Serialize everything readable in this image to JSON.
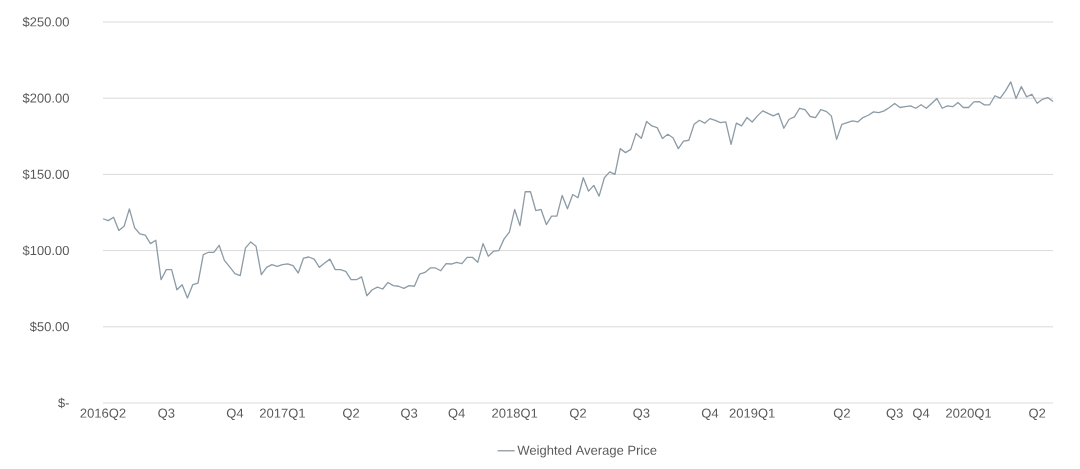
{
  "chart_data": {
    "type": "line",
    "ylim": [
      0,
      250
    ],
    "yticks": [
      {
        "value": 0,
        "label": "$-"
      },
      {
        "value": 50,
        "label": "$50.00"
      },
      {
        "value": 100,
        "label": "$100.00"
      },
      {
        "value": 150,
        "label": "$150.00"
      },
      {
        "value": 200,
        "label": "$200.00"
      },
      {
        "value": 250,
        "label": "$250.00"
      }
    ],
    "grid": "y",
    "legend": "bottom",
    "marker": "none",
    "line_style": "solid",
    "categories": [
      "2016Q2",
      null,
      null,
      null,
      null,
      null,
      null,
      null,
      null,
      null,
      null,
      null,
      "Q3",
      null,
      null,
      null,
      null,
      null,
      null,
      null,
      null,
      null,
      null,
      null,
      null,
      "Q4",
      null,
      null,
      null,
      null,
      null,
      null,
      null,
      null,
      "2017Q1",
      null,
      null,
      null,
      null,
      null,
      null,
      null,
      null,
      null,
      null,
      null,
      null,
      "Q2",
      null,
      null,
      null,
      null,
      null,
      null,
      null,
      null,
      null,
      null,
      "Q3",
      null,
      null,
      null,
      null,
      null,
      null,
      null,
      null,
      "Q4",
      null,
      null,
      null,
      null,
      null,
      null,
      null,
      null,
      null,
      null,
      "2018Q1",
      null,
      null,
      null,
      null,
      null,
      null,
      null,
      null,
      null,
      null,
      null,
      "Q2",
      null,
      null,
      null,
      null,
      null,
      null,
      null,
      null,
      null,
      null,
      null,
      "Q3",
      null,
      null,
      null,
      null,
      null,
      null,
      null,
      null,
      null,
      null,
      null,
      null,
      "Q4",
      null,
      null,
      null,
      null,
      null,
      null,
      null,
      "2019Q1",
      null,
      null,
      null,
      null,
      null,
      null,
      null,
      null,
      null,
      null,
      null,
      null,
      null,
      null,
      null,
      null,
      "Q2",
      null,
      null,
      null,
      null,
      null,
      null,
      null,
      null,
      null,
      "Q3",
      null,
      null,
      null,
      null,
      "Q4",
      null,
      null,
      null,
      null,
      null,
      null,
      null,
      null,
      "2020Q1",
      null,
      null,
      null,
      null,
      null,
      null,
      null,
      null,
      null,
      null,
      null,
      null,
      "Q2",
      null,
      null,
      null
    ],
    "series": [
      {
        "name": "Weighted Average Price",
        "color": "#8c9ba5",
        "values": [
          120.9,
          119.7,
          121.9,
          113.2,
          116.0,
          127.4,
          114.9,
          110.9,
          110.1,
          104.6,
          106.8,
          80.9,
          87.5,
          87.5,
          74.3,
          77.6,
          68.9,
          77.6,
          78.7,
          97.4,
          98.9,
          98.9,
          103.5,
          93.6,
          89.3,
          84.9,
          83.6,
          101.8,
          105.7,
          102.8,
          84.2,
          89.0,
          90.8,
          89.7,
          90.8,
          91.3,
          90.1,
          85.3,
          95.1,
          95.8,
          94.4,
          89.0,
          91.9,
          94.4,
          87.5,
          87.5,
          86.4,
          80.9,
          80.9,
          82.8,
          70.4,
          74.3,
          76.0,
          74.8,
          79.1,
          77.0,
          76.6,
          75.2,
          77.0,
          76.6,
          84.6,
          85.7,
          88.6,
          88.6,
          86.8,
          91.4,
          91.2,
          92.3,
          91.4,
          95.6,
          95.6,
          92.3,
          104.6,
          96.3,
          99.6,
          100.0,
          107.7,
          112.1,
          127.0,
          116.4,
          138.6,
          138.6,
          126.3,
          127.0,
          117.1,
          122.6,
          122.6,
          136.2,
          127.4,
          136.8,
          134.7,
          147.8,
          139.0,
          142.8,
          135.7,
          147.8,
          151.7,
          150.0,
          166.9,
          164.3,
          166.4,
          176.9,
          173.7,
          184.7,
          181.8,
          180.7,
          173.5,
          176.3,
          174.1,
          166.9,
          171.9,
          172.4,
          182.9,
          185.5,
          183.6,
          186.6,
          185.5,
          184.0,
          184.4,
          169.7,
          183.6,
          181.8,
          187.3,
          184.4,
          188.4,
          191.7,
          190.0,
          188.4,
          190.0,
          180.3,
          186.2,
          187.7,
          193.4,
          192.5,
          188.0,
          187.3,
          192.5,
          191.4,
          188.4,
          173.0,
          182.9,
          184.0,
          185.1,
          184.4,
          187.3,
          188.8,
          191.0,
          190.6,
          191.7,
          193.9,
          196.5,
          193.9,
          194.5,
          195.0,
          193.4,
          195.7,
          193.4,
          196.5,
          199.8,
          193.4,
          195.0,
          194.4,
          197.2,
          193.9,
          193.9,
          197.6,
          197.8,
          195.6,
          195.7,
          201.6,
          200.1,
          204.8,
          210.7,
          199.8,
          207.6,
          200.9,
          202.6,
          196.7,
          199.3,
          200.4,
          197.8
        ]
      }
    ]
  }
}
